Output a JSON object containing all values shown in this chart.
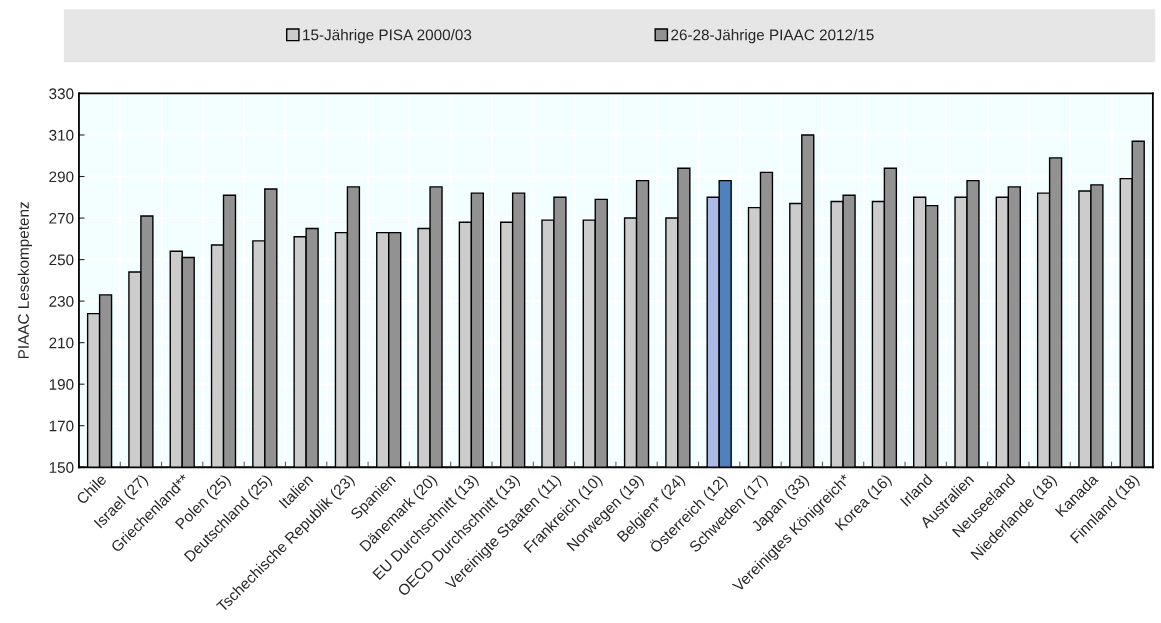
{
  "chart_data": {
    "type": "bar",
    "ylabel": "PIAAC Lesekompetenz",
    "categories": [
      "Chile",
      "Israel (27)",
      "Griechenland**",
      "Polen (25)",
      "Deutschland (25)",
      "Italien",
      "Tschechische Republik (23)",
      "Spanien",
      "Dänemark (20)",
      "EU Durchschnitt (13)",
      "OECD Durchschnitt (13)",
      "Vereinigte Staaten (11)",
      "Frankreich (10)",
      "Norwegen (19)",
      "Belgien* (24)",
      "Österreich (12)",
      "Schweden (17)",
      "Japan (33)",
      "Vereinigtes Königreich*",
      "Korea (16)",
      "Irland",
      "Australien",
      "Neuseeland",
      "Niederlande (18)",
      "Kanada",
      "Finnland (18)"
    ],
    "series": [
      {
        "name": "15-Jährige PISA 2000/03",
        "color": "#cccccc",
        "colors": [
          "#cccccc",
          "#cccccc",
          "#cccccc",
          "#cccccc",
          "#cccccc",
          "#cccccc",
          "#cccccc",
          "#cccccc",
          "#cccccc",
          "#cccccc",
          "#cccccc",
          "#cccccc",
          "#cccccc",
          "#cccccc",
          "#cccccc",
          "#abb9e5",
          "#cccccc",
          "#cccccc",
          "#cccccc",
          "#cccccc",
          "#cccccc",
          "#cccccc",
          "#cccccc",
          "#cccccc",
          "#cccccc",
          "#cccccc"
        ],
        "values": [
          224,
          244,
          254,
          257,
          259,
          261,
          263,
          263,
          265,
          268,
          268,
          269,
          269,
          270,
          270,
          280,
          275,
          277,
          278,
          278,
          280,
          280,
          280,
          282,
          283,
          289
        ]
      },
      {
        "name": "26-28-Jährige PIAAC 2012/15",
        "color": "#929292",
        "colors": [
          "#929292",
          "#929292",
          "#929292",
          "#929292",
          "#929292",
          "#929292",
          "#929292",
          "#929292",
          "#929292",
          "#929292",
          "#929292",
          "#929292",
          "#929292",
          "#929292",
          "#929292",
          "#4f81bd",
          "#929292",
          "#929292",
          "#929292",
          "#929292",
          "#929292",
          "#929292",
          "#929292",
          "#929292",
          "#929292",
          "#929292"
        ],
        "values": [
          233,
          271,
          251,
          281,
          284,
          265,
          285,
          263,
          285,
          282,
          282,
          280,
          279,
          288,
          294,
          288,
          292,
          310,
          281,
          294,
          276,
          288,
          285,
          299,
          286,
          307
        ]
      }
    ],
    "ylim": [
      150,
      330
    ],
    "yticks": [
      150,
      170,
      190,
      210,
      230,
      250,
      270,
      290,
      310,
      330
    ],
    "grid": true,
    "legend": "top"
  }
}
